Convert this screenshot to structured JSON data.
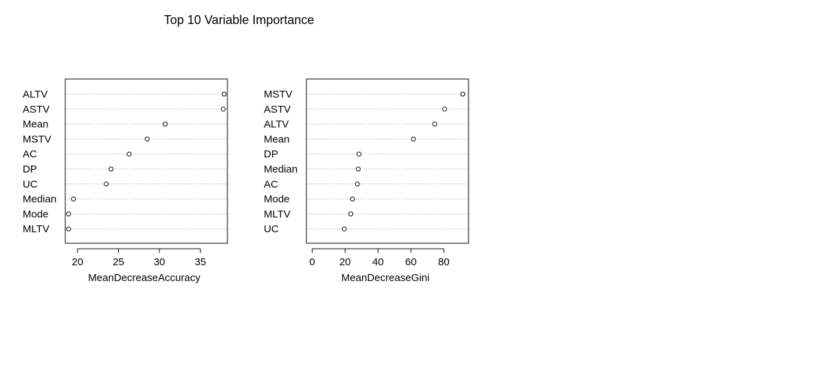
{
  "title": "Top 10 Variable  Importance",
  "chart_data": [
    {
      "type": "scatter",
      "xlabel": "MeanDecreaseAccuracy",
      "xlim": [
        18.5,
        38.3
      ],
      "xticks": [
        20,
        25,
        30,
        35
      ],
      "grid": "horizontal dotted",
      "categories": [
        "ALTV",
        "ASTV",
        "Mean",
        "MSTV",
        "AC",
        "DP",
        "UC",
        "Median",
        "Mode",
        "MLTV"
      ],
      "values": [
        37.9,
        37.8,
        30.7,
        28.5,
        26.3,
        24.1,
        23.5,
        19.5,
        18.9,
        18.9
      ]
    },
    {
      "type": "scatter",
      "xlabel": "MeanDecreaseGini",
      "xlim": [
        -3.5,
        95
      ],
      "xticks": [
        0,
        20,
        40,
        60,
        80
      ],
      "grid": "horizontal dotted",
      "categories": [
        "MSTV",
        "ASTV",
        "ALTV",
        "Mean",
        "DP",
        "Median",
        "AC",
        "Mode",
        "MLTV",
        "UC"
      ],
      "values": [
        91.5,
        80.5,
        74.5,
        61.5,
        28.5,
        28.0,
        27.5,
        24.5,
        23.5,
        19.5
      ]
    }
  ]
}
